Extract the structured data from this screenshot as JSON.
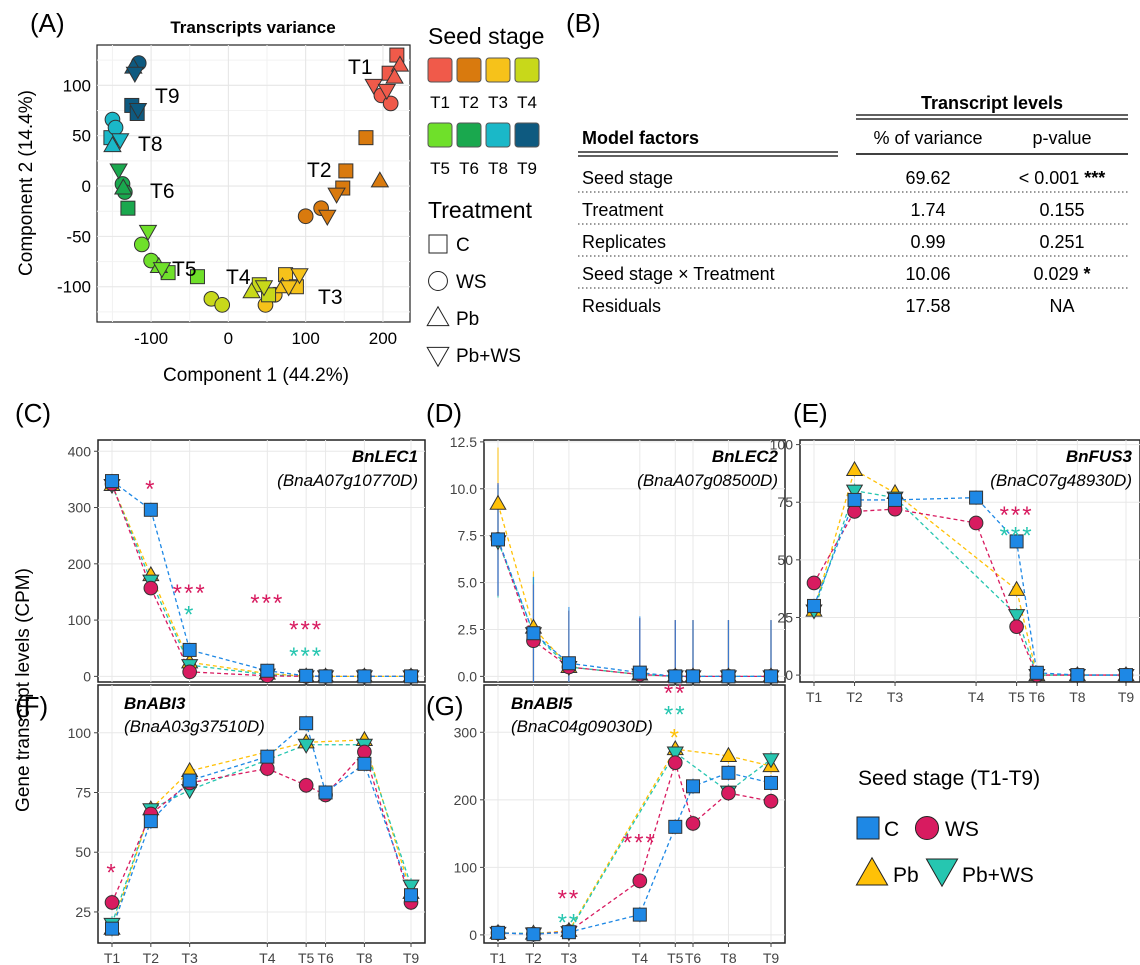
{
  "colors": {
    "C": "#1e88e5",
    "WS": "#d81b60",
    "Pb": "#ffc107",
    "PbWS": "#26c6b0",
    "T1": "#f05a4a",
    "T2": "#d97a0e",
    "T3": "#f6c21a",
    "T4": "#c8d81a",
    "T5": "#6fe02a",
    "T6": "#1aa84e",
    "T8": "#1ab8c8",
    "T9": "#0e5a80"
  },
  "panelA": {
    "label": "(A)",
    "title": "Transcripts variance",
    "xlabel": "Component 1 (44.2%)",
    "ylabel": "Component 2 (14.4%)",
    "xticks": [
      "-100",
      "0",
      "100",
      "200"
    ],
    "yticks": [
      "100",
      "50",
      "0",
      "-50",
      "-100"
    ],
    "stage_labels": [
      "T1",
      "T2",
      "T3",
      "T4",
      "T5",
      "T6",
      "T8",
      "T9"
    ],
    "legend": {
      "stage_title": "Seed stage",
      "stages_row1": [
        "T1",
        "T2",
        "T3",
        "T4"
      ],
      "stages_row2": [
        "T5",
        "T6",
        "T8",
        "T9"
      ],
      "treatment_title": "Treatment",
      "treatments": [
        "C",
        "WS",
        "Pb",
        "Pb+WS"
      ]
    }
  },
  "panelB": {
    "label": "(B)",
    "group_header": "Transcript levels",
    "col_factor": "Model factors",
    "col_var": "% of variance",
    "col_p": "p-value",
    "rows": [
      {
        "factor": "Seed stage",
        "var": "69.62",
        "p": "< 0.001",
        "sig": "***"
      },
      {
        "factor": "Treatment",
        "var": "1.74",
        "p": "0.155",
        "sig": ""
      },
      {
        "factor": "Replicates",
        "var": "0.99",
        "p": "0.251",
        "sig": ""
      },
      {
        "factor": "Seed stage × Treatment",
        "var": "10.06",
        "p": "0.029",
        "sig": "*"
      },
      {
        "factor": "Residuals",
        "var": "17.58",
        "p": "NA",
        "sig": ""
      }
    ]
  },
  "shared": {
    "ylabel": "Gene transcript levels (CPM)",
    "xtitle": "Seed stage (T1-T9)",
    "legend": [
      "C",
      "WS",
      "Pb",
      "Pb+WS"
    ]
  },
  "chart_data": [
    {
      "type": "scatter",
      "panel": "A",
      "title": "Transcripts variance",
      "xlabel": "Component 1 (44.2%)",
      "ylabel": "Component 2 (14.4%)",
      "xlim": [
        -170,
        235
      ],
      "ylim": [
        -135,
        140
      ],
      "groups": [
        {
          "stage": "T1",
          "points": [
            {
              "t": "C",
              "x": 218,
              "y": 130
            },
            {
              "t": "C",
              "x": 208,
              "y": 112
            },
            {
              "t": "WS",
              "x": 198,
              "y": 90
            },
            {
              "t": "WS",
              "x": 210,
              "y": 82
            },
            {
              "t": "Pb",
              "x": 222,
              "y": 120
            },
            {
              "t": "Pb",
              "x": 215,
              "y": 108
            },
            {
              "t": "PbWS",
              "x": 188,
              "y": 100
            },
            {
              "t": "PbWS",
              "x": 205,
              "y": 95
            }
          ]
        },
        {
          "stage": "T2",
          "points": [
            {
              "t": "C",
              "x": 152,
              "y": 15
            },
            {
              "t": "C",
              "x": 178,
              "y": 48
            },
            {
              "t": "C",
              "x": 148,
              "y": -2
            },
            {
              "t": "WS",
              "x": 100,
              "y": -30
            },
            {
              "t": "WS",
              "x": 120,
              "y": -22
            },
            {
              "t": "Pb",
              "x": 196,
              "y": 5
            },
            {
              "t": "PbWS",
              "x": 140,
              "y": -8
            },
            {
              "t": "PbWS",
              "x": 128,
              "y": -30
            }
          ]
        },
        {
          "stage": "T3",
          "points": [
            {
              "t": "C",
              "x": 74,
              "y": -88
            },
            {
              "t": "C",
              "x": 88,
              "y": -100
            },
            {
              "t": "WS",
              "x": 60,
              "y": -108
            },
            {
              "t": "WS",
              "x": 48,
              "y": -118
            },
            {
              "t": "Pb",
              "x": 70,
              "y": -100
            },
            {
              "t": "PbWS",
              "x": 92,
              "y": -88
            },
            {
              "t": "PbWS",
              "x": 78,
              "y": -100
            }
          ]
        },
        {
          "stage": "T4",
          "points": [
            {
              "t": "C",
              "x": 40,
              "y": -98
            },
            {
              "t": "C",
              "x": 52,
              "y": -108
            },
            {
              "t": "WS",
              "x": -22,
              "y": -112
            },
            {
              "t": "WS",
              "x": -8,
              "y": -118
            },
            {
              "t": "Pb",
              "x": 30,
              "y": -105
            },
            {
              "t": "PbWS",
              "x": 46,
              "y": -100
            }
          ]
        },
        {
          "stage": "T5",
          "points": [
            {
              "t": "C",
              "x": -40,
              "y": -90
            },
            {
              "t": "C",
              "x": -78,
              "y": -86
            },
            {
              "t": "WS",
              "x": -112,
              "y": -58
            },
            {
              "t": "WS",
              "x": -100,
              "y": -74
            },
            {
              "t": "Pb",
              "x": -90,
              "y": -80
            },
            {
              "t": "PbWS",
              "x": -104,
              "y": -45
            },
            {
              "t": "PbWS",
              "x": -86,
              "y": -82
            }
          ]
        },
        {
          "stage": "T6",
          "points": [
            {
              "t": "C",
              "x": -130,
              "y": -22
            },
            {
              "t": "WS",
              "x": -137,
              "y": 2
            },
            {
              "t": "WS",
              "x": -134,
              "y": -6
            },
            {
              "t": "Pb",
              "x": -136,
              "y": -2
            },
            {
              "t": "PbWS",
              "x": -142,
              "y": 16
            }
          ]
        },
        {
          "stage": "T8",
          "points": [
            {
              "t": "C",
              "x": -152,
              "y": 48
            },
            {
              "t": "WS",
              "x": -150,
              "y": 66
            },
            {
              "t": "WS",
              "x": -146,
              "y": 58
            },
            {
              "t": "Pb",
              "x": -150,
              "y": 40
            },
            {
              "t": "PbWS",
              "x": -140,
              "y": 46
            }
          ]
        },
        {
          "stage": "T9",
          "points": [
            {
              "t": "C",
              "x": -125,
              "y": 80
            },
            {
              "t": "C",
              "x": -118,
              "y": 72
            },
            {
              "t": "WS",
              "x": -116,
              "y": 122
            },
            {
              "t": "Pb",
              "x": -123,
              "y": 118
            },
            {
              "t": "PbWS",
              "x": -121,
              "y": 112
            },
            {
              "t": "PbWS",
              "x": -117,
              "y": 76
            }
          ]
        }
      ]
    },
    {
      "type": "line",
      "panel": "C",
      "gene": "BnLEC1",
      "id": "(BnaA07g10770D)",
      "ylim": [
        -10,
        420
      ],
      "yticks": [
        0,
        100,
        200,
        300,
        400
      ],
      "categories": [
        "T1",
        "T2",
        "T3",
        "T4",
        "T5",
        "T6",
        "T8",
        "T9"
      ],
      "series": [
        {
          "name": "C",
          "values": [
            347,
            296,
            47,
            10,
            1,
            0,
            0,
            0
          ]
        },
        {
          "name": "WS",
          "values": [
            342,
            157,
            8,
            1,
            0,
            0,
            0,
            0
          ]
        },
        {
          "name": "Pb",
          "values": [
            340,
            180,
            25,
            5,
            0,
            0,
            0,
            0
          ]
        },
        {
          "name": "Pb+WS",
          "values": [
            340,
            170,
            20,
            3,
            0,
            0,
            0,
            0
          ]
        }
      ],
      "stars": [
        {
          "cat": "T2",
          "y": 335,
          "text": "*",
          "series": "WS"
        },
        {
          "cat": "T3",
          "y": 150,
          "text": "***",
          "series": "WS"
        },
        {
          "cat": "T3",
          "y": 112,
          "text": "*",
          "series": "Pb+WS"
        },
        {
          "cat": "T4",
          "y": 132,
          "text": "***",
          "series": "WS"
        },
        {
          "cat": "T5",
          "y": 85,
          "text": "***",
          "series": "WS"
        },
        {
          "cat": "T5",
          "y": 38,
          "text": "***",
          "series": "Pb+WS"
        }
      ]
    },
    {
      "type": "line",
      "panel": "D",
      "gene": "BnLEC2",
      "id": "(BnaA07g08500D)",
      "ylim": [
        -0.3,
        12.6
      ],
      "yticks": [
        0,
        2.5,
        5,
        7.5,
        10,
        12.5
      ],
      "categories": [
        "T1",
        "T2",
        "T3",
        "T4",
        "T5",
        "T6",
        "T8",
        "T9"
      ],
      "series": [
        {
          "name": "C",
          "values": [
            7.3,
            2.3,
            0.7,
            0.2,
            0,
            0,
            0,
            0
          ]
        },
        {
          "name": "WS",
          "values": [
            7.3,
            1.9,
            0.5,
            0.1,
            0,
            0,
            0,
            0
          ]
        },
        {
          "name": "Pb",
          "values": [
            9.2,
            2.6,
            0.5,
            0.1,
            0,
            0,
            0,
            0
          ]
        },
        {
          "name": "Pb+WS",
          "values": [
            7.2,
            2.3,
            0.5,
            0.1,
            0,
            0,
            0,
            0
          ]
        }
      ],
      "stars": []
    },
    {
      "type": "line",
      "panel": "E",
      "gene": "BnFUS3",
      "id": "(BnaC07g48930D)",
      "ylim": [
        -3,
        102
      ],
      "yticks": [
        0,
        25,
        50,
        75,
        100
      ],
      "categories": [
        "T1",
        "T2",
        "T3",
        "T4",
        "T5",
        "T6",
        "T8",
        "T9"
      ],
      "series": [
        {
          "name": "C",
          "values": [
            30,
            76,
            76,
            77,
            58,
            1,
            0,
            0
          ]
        },
        {
          "name": "WS",
          "values": [
            40,
            71,
            72,
            66,
            21,
            0,
            0,
            0
          ]
        },
        {
          "name": "Pb",
          "values": [
            28,
            89,
            79,
            null,
            37,
            0,
            0,
            0
          ]
        },
        {
          "name": "Pb+WS",
          "values": [
            28,
            80,
            77,
            null,
            26,
            0,
            0,
            0
          ]
        }
      ],
      "stars": [
        {
          "cat": "T5",
          "y": 70,
          "text": "***",
          "series": "WS"
        },
        {
          "cat": "T5",
          "y": 61,
          "text": "***",
          "series": "Pb+WS"
        }
      ]
    },
    {
      "type": "line",
      "panel": "F",
      "gene": "BnABI3",
      "id": "(BnaA03g37510D)",
      "ylim": [
        12,
        120
      ],
      "yticks": [
        25,
        50,
        75,
        100
      ],
      "categories": [
        "T1",
        "T2",
        "T3",
        "T4",
        "T5",
        "T6",
        "T8",
        "T9"
      ],
      "series": [
        {
          "name": "C",
          "values": [
            18,
            63,
            80,
            90,
            104,
            75,
            87,
            32
          ]
        },
        {
          "name": "WS",
          "values": [
            29,
            66,
            79,
            85,
            78,
            74,
            92,
            29
          ]
        },
        {
          "name": "Pb",
          "values": [
            18,
            68,
            84,
            null,
            96,
            null,
            97,
            33
          ]
        },
        {
          "name": "Pb+WS",
          "values": [
            20,
            68,
            76,
            null,
            95,
            null,
            95,
            36
          ]
        }
      ],
      "stars": [
        {
          "cat": "T1",
          "y": 42,
          "text": "*",
          "series": "WS"
        }
      ]
    },
    {
      "type": "line",
      "panel": "G",
      "gene": "BnABI5",
      "id": "(BnaC04g09030D)",
      "ylim": [
        -12,
        370
      ],
      "yticks": [
        0,
        100,
        200,
        300
      ],
      "categories": [
        "T1",
        "T2",
        "T3",
        "T4",
        "T5",
        "T6",
        "T8",
        "T9"
      ],
      "series": [
        {
          "name": "C",
          "values": [
            3,
            1,
            4,
            30,
            160,
            220,
            240,
            225
          ]
        },
        {
          "name": "WS",
          "values": [
            3,
            1,
            5,
            80,
            255,
            165,
            210,
            198
          ]
        },
        {
          "name": "Pb",
          "values": [
            3,
            2,
            6,
            null,
            275,
            null,
            265,
            250
          ]
        },
        {
          "name": "Pb+WS",
          "values": [
            3,
            2,
            4,
            null,
            270,
            null,
            212,
            260
          ]
        }
      ],
      "stars": [
        {
          "cat": "T3",
          "y": 55,
          "text": "**",
          "series": "WS"
        },
        {
          "cat": "T3",
          "y": 20,
          "text": "**",
          "series": "Pb+WS"
        },
        {
          "cat": "T4",
          "y": 138,
          "text": "***",
          "series": "WS"
        },
        {
          "cat": "T5",
          "y": 360,
          "text": "**",
          "series": "WS"
        },
        {
          "cat": "T5",
          "y": 328,
          "text": "**",
          "series": "Pb+WS"
        },
        {
          "cat": "T5",
          "y": 294,
          "text": "*",
          "series": "Pb"
        }
      ]
    }
  ]
}
